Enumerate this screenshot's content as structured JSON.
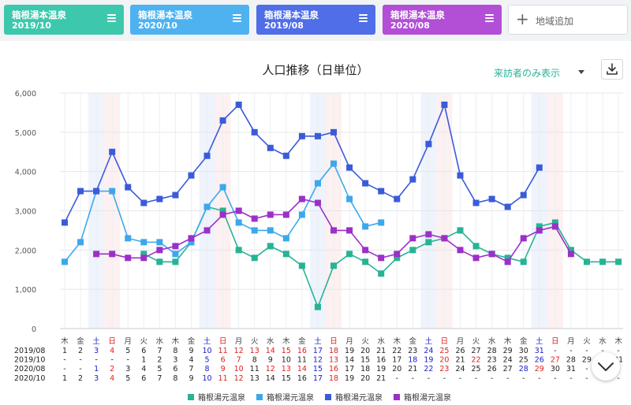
{
  "cards": [
    {
      "name": "箱根湯本温泉",
      "month": "2019/10",
      "color": "#3dc8ad"
    },
    {
      "name": "箱根湯本温泉",
      "month": "2020/10",
      "color": "#4fb2f0"
    },
    {
      "name": "箱根湯本温泉",
      "month": "2019/08",
      "color": "#4f6ee8"
    },
    {
      "name": "箱根湯本温泉",
      "month": "2020/08",
      "color": "#b24fd6"
    }
  ],
  "add_label": "地域追加",
  "filter_label": "来訪者のみ表示",
  "chart_data": {
    "type": "line",
    "title": "人口推移（日単位）",
    "ylim": [
      0,
      6000
    ],
    "yticks": [
      0,
      1000,
      2000,
      3000,
      4000,
      5000,
      6000
    ],
    "ytick_labels": [
      "0",
      "1,000",
      "2,000",
      "3,000",
      "4,000",
      "5,000",
      "6,000"
    ],
    "weekdays": [
      "木",
      "金",
      "土",
      "日",
      "月",
      "火",
      "水",
      "木",
      "金",
      "土",
      "日",
      "月",
      "火",
      "水",
      "木",
      "金",
      "土",
      "日",
      "月",
      "火",
      "水",
      "木",
      "金",
      "土",
      "日",
      "月",
      "火",
      "水",
      "木",
      "金",
      "土",
      "日",
      "月",
      "火",
      "水",
      "木"
    ],
    "saturday_columns": [
      2,
      9,
      16,
      23,
      30
    ],
    "sunday_columns": [
      3,
      10,
      17,
      24,
      31
    ],
    "date_rows": [
      {
        "label": "2019/08",
        "dates": [
          "1",
          "2",
          "3",
          "4",
          "5",
          "6",
          "7",
          "8",
          "9",
          "10",
          "11",
          "12",
          "13",
          "14",
          "15",
          "16",
          "17",
          "18",
          "19",
          "20",
          "21",
          "22",
          "23",
          "24",
          "25",
          "26",
          "27",
          "28",
          "29",
          "30",
          "31",
          "-",
          "-",
          "-",
          "-",
          "-"
        ]
      },
      {
        "label": "2019/10",
        "dates": [
          "-",
          "-",
          "-",
          "-",
          "-",
          "1",
          "2",
          "3",
          "4",
          "5",
          "6",
          "7",
          "8",
          "9",
          "10",
          "11",
          "12",
          "13",
          "14",
          "15",
          "16",
          "17",
          "18",
          "19",
          "20",
          "21",
          "22",
          "23",
          "24",
          "25",
          "26",
          "27",
          "28",
          "29",
          "30",
          "31"
        ]
      },
      {
        "label": "2020/08",
        "dates": [
          "-",
          "-",
          "1",
          "2",
          "3",
          "4",
          "5",
          "6",
          "7",
          "8",
          "9",
          "10",
          "11",
          "12",
          "13",
          "14",
          "15",
          "16",
          "17",
          "18",
          "19",
          "20",
          "21",
          "22",
          "23",
          "24",
          "25",
          "26",
          "27",
          "28",
          "29",
          "30",
          "31",
          "-",
          "-",
          "-"
        ]
      },
      {
        "label": "2020/10",
        "dates": [
          "1",
          "2",
          "3",
          "4",
          "5",
          "6",
          "7",
          "8",
          "9",
          "10",
          "11",
          "12",
          "13",
          "14",
          "15",
          "16",
          "17",
          "18",
          "19",
          "20",
          "21",
          "-",
          "-",
          "-",
          "-",
          "-",
          "-",
          "-",
          "-",
          "-",
          "-",
          "-",
          "-",
          "-",
          "-",
          "-"
        ]
      }
    ],
    "date_colors": [
      [
        "#222",
        "#222",
        "#1a1acc",
        "#e02020",
        "#222",
        "#222",
        "#222",
        "#222",
        "#222",
        "#1a1acc",
        "#e02020",
        "#e02020",
        "#e02020",
        "#e02020",
        "#e02020",
        "#e02020",
        "#1a1acc",
        "#e02020",
        "#222",
        "#222",
        "#222",
        "#222",
        "#222",
        "#1a1acc",
        "#e02020",
        "#222",
        "#222",
        "#222",
        "#222",
        "#222",
        "#1a1acc",
        "#222",
        "#222",
        "#222",
        "#222",
        "#222"
      ],
      [
        "#222",
        "#222",
        "#222",
        "#222",
        "#222",
        "#222",
        "#222",
        "#222",
        "#222",
        "#1a1acc",
        "#e02020",
        "#e02020",
        "#222",
        "#222",
        "#222",
        "#222",
        "#1a1acc",
        "#e02020",
        "#222",
        "#222",
        "#222",
        "#222",
        "#1a1acc",
        "#1a1acc",
        "#e02020",
        "#222",
        "#e02020",
        "#222",
        "#222",
        "#222",
        "#1a1acc",
        "#e02020",
        "#222",
        "#222",
        "#222",
        "#222"
      ],
      [
        "#222",
        "#222",
        "#1a1acc",
        "#e02020",
        "#222",
        "#222",
        "#222",
        "#222",
        "#222",
        "#1a1acc",
        "#e02020",
        "#e02020",
        "#222",
        "#e02020",
        "#e02020",
        "#e02020",
        "#1a1acc",
        "#e02020",
        "#222",
        "#222",
        "#222",
        "#222",
        "#222",
        "#1a1acc",
        "#e02020",
        "#222",
        "#222",
        "#222",
        "#222",
        "#1a1acc",
        "#e02020",
        "#222",
        "#222",
        "#222",
        "#222",
        "#222"
      ],
      [
        "#222",
        "#222",
        "#1a1acc",
        "#e02020",
        "#222",
        "#222",
        "#222",
        "#222",
        "#222",
        "#1a1acc",
        "#e02020",
        "#e02020",
        "#222",
        "#222",
        "#222",
        "#222",
        "#1a1acc",
        "#e02020",
        "#222",
        "#222",
        "#222",
        "#222",
        "#222",
        "#222",
        "#222",
        "#222",
        "#222",
        "#222",
        "#222",
        "#222",
        "#222",
        "#222",
        "#222",
        "#222",
        "#222",
        "#222"
      ]
    ],
    "series": [
      {
        "name": "箱根湯元温泉",
        "color": "#27b394",
        "values": [
          null,
          null,
          null,
          null,
          null,
          1900,
          1700,
          1700,
          2200,
          3100,
          3000,
          2000,
          1800,
          2100,
          1900,
          1600,
          550,
          1600,
          1900,
          1700,
          1400,
          1800,
          2000,
          2200,
          2300,
          2500,
          2100,
          1900,
          1800,
          1700,
          2600,
          2700,
          2000,
          1700,
          1700,
          1700
        ]
      },
      {
        "name": "箱根湯元温泉",
        "color": "#3ca8ec",
        "values": [
          1700,
          2200,
          3500,
          3500,
          2300,
          2200,
          2200,
          1900,
          2200,
          3100,
          3600,
          2700,
          2500,
          2500,
          2300,
          2900,
          3700,
          4200,
          3300,
          2600,
          2700,
          null,
          null,
          null,
          null,
          null,
          null,
          null,
          null,
          null,
          null,
          null,
          null,
          null,
          null,
          null
        ]
      },
      {
        "name": "箱根湯元温泉",
        "color": "#3a5bd9",
        "values": [
          2700,
          3500,
          3500,
          4500,
          3600,
          3200,
          3300,
          3400,
          3900,
          4400,
          5300,
          5700,
          5000,
          4600,
          4400,
          4900,
          4900,
          5000,
          4100,
          3700,
          3500,
          3300,
          3800,
          4700,
          5700,
          3900,
          3200,
          3300,
          3100,
          3400,
          4100,
          null,
          null,
          null,
          null,
          null
        ]
      },
      {
        "name": "箱根湯元温泉",
        "color": "#9b30c8",
        "values": [
          null,
          null,
          1900,
          1900,
          1800,
          1800,
          2000,
          2100,
          2300,
          2500,
          2900,
          3000,
          2800,
          2900,
          2900,
          3300,
          3200,
          2500,
          2500,
          2000,
          1800,
          1900,
          2300,
          2400,
          2300,
          2000,
          1800,
          1900,
          1700,
          2300,
          2500,
          2600,
          1900,
          null,
          null,
          null
        ]
      }
    ]
  }
}
